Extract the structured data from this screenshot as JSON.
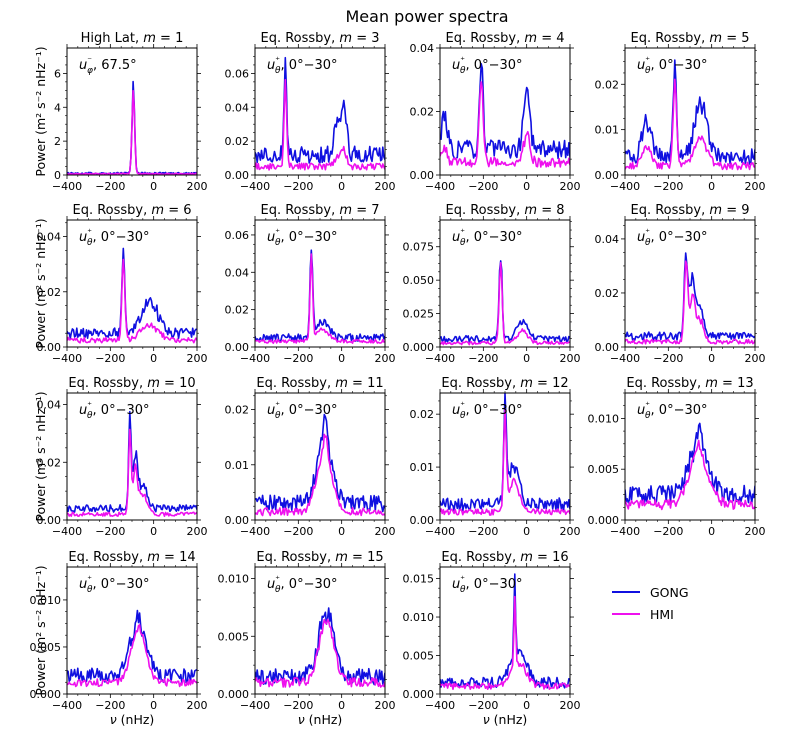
{
  "figure": {
    "title": "Mean power spectra",
    "xlabel": "ν (nHz)",
    "ylabel": "Power (m² s⁻² nHz⁻¹)",
    "x_ticks": [
      -400,
      -200,
      0,
      200
    ],
    "xlim": [
      -400,
      200
    ]
  },
  "legend": {
    "placement": "bottom-right",
    "entries": [
      {
        "name": "GONG",
        "color": "#1010e0"
      },
      {
        "name": "HMI",
        "color": "#ee10ee"
      }
    ]
  },
  "chart_data": [
    {
      "type": "line",
      "title": "High Lat, m = 1",
      "annotation": "u_φ⁻, 67.5°",
      "xlim": [
        -400,
        200
      ],
      "ylim": [
        0,
        7.5
      ],
      "yticks": [
        0,
        2,
        4,
        6
      ],
      "ytick_labels": [
        "0",
        "2",
        "4",
        "6"
      ],
      "peaks": [
        {
          "x": -94,
          "y": 5.1,
          "w": 6
        }
      ],
      "baseline": {
        "GONG": 0.1,
        "HMI": 0.07
      },
      "noise": {
        "GONG": 0.06,
        "HMI": 0.03
      },
      "hmi_scale": 1.0,
      "series": [
        {
          "name": "GONG",
          "values_ref": "generated"
        },
        {
          "name": "HMI",
          "values_ref": "generated"
        }
      ]
    },
    {
      "type": "line",
      "title": "Eq. Rossby, m = 3",
      "annotation": "u_θ⁺, 0°−30°",
      "xlim": [
        -400,
        200
      ],
      "ylim": [
        0,
        0.075
      ],
      "yticks": [
        0,
        0.02,
        0.04,
        0.06
      ],
      "ytick_labels": [
        "0.00",
        "0.02",
        "0.04",
        "0.06"
      ],
      "peaks": [
        {
          "x": -260,
          "y": 0.052,
          "w": 6
        },
        {
          "x": 10,
          "y": 0.03,
          "w": 12
        },
        {
          "x": -20,
          "y": 0.018,
          "w": 15
        }
      ],
      "baseline": {
        "GONG": 0.012,
        "HMI": 0.005
      },
      "noise": {
        "GONG": 0.005,
        "HMI": 0.002
      },
      "hmi_scale": 0.3
    },
    {
      "type": "line",
      "title": "Eq. Rossby, m = 4",
      "annotation": "u_θ⁺, 0°−30°",
      "xlim": [
        -400,
        200
      ],
      "ylim": [
        0,
        0.04
      ],
      "yticks": [
        0,
        0.02,
        0.04
      ],
      "ytick_labels": [
        "0.00",
        "0.02",
        "0.04"
      ],
      "peaks": [
        {
          "x": -210,
          "y": 0.027,
          "w": 9
        },
        {
          "x": 0,
          "y": 0.02,
          "w": 14
        },
        {
          "x": -380,
          "y": 0.012,
          "w": 12
        }
      ],
      "baseline": {
        "GONG": 0.008,
        "HMI": 0.004
      },
      "noise": {
        "GONG": 0.003,
        "HMI": 0.0015
      },
      "hmi_scale": 0.45
    },
    {
      "type": "line",
      "title": "Eq. Rossby, m = 5",
      "annotation": "u_θ⁺, 0°−30°",
      "xlim": [
        -400,
        200
      ],
      "ylim": [
        0,
        0.028
      ],
      "yticks": [
        0,
        0.01,
        0.02
      ],
      "ytick_labels": [
        "0.00",
        "0.01",
        "0.02"
      ],
      "peaks": [
        {
          "x": -170,
          "y": 0.019,
          "w": 8
        },
        {
          "x": -50,
          "y": 0.011,
          "w": 30
        },
        {
          "x": -300,
          "y": 0.008,
          "w": 20
        }
      ],
      "baseline": {
        "GONG": 0.004,
        "HMI": 0.002
      },
      "noise": {
        "GONG": 0.0018,
        "HMI": 0.0008
      },
      "hmi_scale": 0.55
    },
    {
      "type": "line",
      "title": "Eq. Rossby, m = 6",
      "annotation": "u_θ⁺, 0°−30°",
      "xlim": [
        -400,
        200
      ],
      "ylim": [
        0,
        0.046
      ],
      "yticks": [
        0,
        0.02,
        0.04
      ],
      "ytick_labels": [
        "0.00",
        "0.02",
        "0.04"
      ],
      "peaks": [
        {
          "x": -140,
          "y": 0.03,
          "w": 7
        },
        {
          "x": -20,
          "y": 0.011,
          "w": 40
        }
      ],
      "baseline": {
        "GONG": 0.005,
        "HMI": 0.0025
      },
      "noise": {
        "GONG": 0.002,
        "HMI": 0.001
      },
      "hmi_scale": 0.5
    },
    {
      "type": "line",
      "title": "Eq. Rossby, m = 7",
      "annotation": "u_θ⁺, 0°−30°",
      "xlim": [
        -400,
        200
      ],
      "ylim": [
        0,
        0.068
      ],
      "yticks": [
        0,
        0.02,
        0.04,
        0.06
      ],
      "ytick_labels": [
        "0.00",
        "0.02",
        "0.04",
        "0.06"
      ],
      "peaks": [
        {
          "x": -140,
          "y": 0.046,
          "w": 6
        },
        {
          "x": -90,
          "y": 0.008,
          "w": 30
        }
      ],
      "baseline": {
        "GONG": 0.005,
        "HMI": 0.003
      },
      "noise": {
        "GONG": 0.002,
        "HMI": 0.001
      },
      "hmi_scale": 0.8
    },
    {
      "type": "line",
      "title": "Eq. Rossby, m = 8",
      "annotation": "u_θ⁺, 0°−30°",
      "xlim": [
        -400,
        200
      ],
      "ylim": [
        0,
        0.095
      ],
      "yticks": [
        0,
        0.025,
        0.05,
        0.075
      ],
      "ytick_labels": [
        "0.000",
        "0.025",
        "0.050",
        "0.075"
      ],
      "peaks": [
        {
          "x": -120,
          "y": 0.063,
          "w": 7
        },
        {
          "x": -20,
          "y": 0.012,
          "w": 25
        }
      ],
      "baseline": {
        "GONG": 0.006,
        "HMI": 0.003
      },
      "noise": {
        "GONG": 0.0025,
        "HMI": 0.0012
      },
      "hmi_scale": 0.75
    },
    {
      "type": "line",
      "title": "Eq. Rossby, m = 9",
      "annotation": "u_θ⁺, 0°−30°",
      "xlim": [
        -400,
        200
      ],
      "ylim": [
        0,
        0.047
      ],
      "yticks": [
        0,
        0.02,
        0.04
      ],
      "ytick_labels": [
        "0.00",
        "0.02",
        "0.04"
      ],
      "peaks": [
        {
          "x": -118,
          "y": 0.031,
          "w": 8
        },
        {
          "x": -90,
          "y": 0.02,
          "w": 10
        },
        {
          "x": -60,
          "y": 0.012,
          "w": 20
        }
      ],
      "baseline": {
        "GONG": 0.004,
        "HMI": 0.002
      },
      "noise": {
        "GONG": 0.0015,
        "HMI": 0.0008
      },
      "hmi_scale": 0.75
    },
    {
      "type": "line",
      "title": "Eq. Rossby, m = 10",
      "annotation": "u_θ⁺, 0°−30°",
      "xlim": [
        -400,
        200
      ],
      "ylim": [
        0,
        0.044
      ],
      "yticks": [
        0,
        0.02,
        0.04
      ],
      "ytick_labels": [
        "0.00",
        "0.02",
        "0.04"
      ],
      "peaks": [
        {
          "x": -110,
          "y": 0.03,
          "w": 6
        },
        {
          "x": -85,
          "y": 0.018,
          "w": 10
        },
        {
          "x": -50,
          "y": 0.008,
          "w": 20
        }
      ],
      "baseline": {
        "GONG": 0.004,
        "HMI": 0.002
      },
      "noise": {
        "GONG": 0.0013,
        "HMI": 0.0007
      },
      "hmi_scale": 0.85
    },
    {
      "type": "line",
      "title": "Eq. Rossby, m = 11",
      "annotation": "u_θ⁺, 0°−30°",
      "xlim": [
        -400,
        200
      ],
      "ylim": [
        0,
        0.023
      ],
      "yticks": [
        0,
        0.01,
        0.02
      ],
      "ytick_labels": [
        "0.00",
        "0.01",
        "0.02"
      ],
      "peaks": [
        {
          "x": -80,
          "y": 0.011,
          "w": 35
        },
        {
          "x": -75,
          "y": 0.005,
          "w": 8
        }
      ],
      "baseline": {
        "GONG": 0.003,
        "HMI": 0.0015
      },
      "noise": {
        "GONG": 0.0015,
        "HMI": 0.0007
      },
      "hmi_scale": 0.7
    },
    {
      "type": "line",
      "title": "Eq. Rossby, m = 12",
      "annotation": "u_θ⁺, 0°−30°",
      "xlim": [
        -400,
        200
      ],
      "ylim": [
        0,
        0.024
      ],
      "yticks": [
        0,
        0.01,
        0.02
      ],
      "ytick_labels": [
        "0.00",
        "0.01",
        "0.02"
      ],
      "peaks": [
        {
          "x": -100,
          "y": 0.018,
          "w": 6
        },
        {
          "x": -60,
          "y": 0.007,
          "w": 25
        }
      ],
      "baseline": {
        "GONG": 0.003,
        "HMI": 0.0015
      },
      "noise": {
        "GONG": 0.0012,
        "HMI": 0.0006
      },
      "hmi_scale": 0.8
    },
    {
      "type": "line",
      "title": "Eq. Rossby, m = 13",
      "annotation": "u_θ⁺, 0°−30°",
      "xlim": [
        -400,
        200
      ],
      "ylim": [
        0,
        0.0125
      ],
      "yticks": [
        0,
        0.005,
        0.01
      ],
      "ytick_labels": [
        "0.000",
        "0.005",
        "0.010"
      ],
      "peaks": [
        {
          "x": -60,
          "y": 0.005,
          "w": 45
        },
        {
          "x": -60,
          "y": 0.002,
          "w": 8
        }
      ],
      "baseline": {
        "GONG": 0.0025,
        "HMI": 0.0015
      },
      "noise": {
        "GONG": 0.0009,
        "HMI": 0.0005
      },
      "hmi_scale": 0.75
    },
    {
      "type": "line",
      "title": "Eq. Rossby, m = 14",
      "annotation": "u_θ⁺, 0°−30°",
      "xlim": [
        -400,
        200
      ],
      "ylim": [
        0,
        0.0135
      ],
      "yticks": [
        0,
        0.005,
        0.01
      ],
      "ytick_labels": [
        "0.000",
        "0.005",
        "0.010"
      ],
      "peaks": [
        {
          "x": -70,
          "y": 0.006,
          "w": 35
        }
      ],
      "baseline": {
        "GONG": 0.002,
        "HMI": 0.0012
      },
      "noise": {
        "GONG": 0.0008,
        "HMI": 0.0004
      },
      "hmi_scale": 0.8
    },
    {
      "type": "line",
      "title": "Eq. Rossby, m = 15",
      "annotation": "u_θ⁺, 0°−30°",
      "xlim": [
        -400,
        200
      ],
      "ylim": [
        0,
        0.011
      ],
      "yticks": [
        0,
        0.005,
        0.01
      ],
      "ytick_labels": [
        "0.000",
        "0.005",
        "0.010"
      ],
      "peaks": [
        {
          "x": -70,
          "y": 0.0055,
          "w": 35
        }
      ],
      "baseline": {
        "GONG": 0.0015,
        "HMI": 0.001
      },
      "noise": {
        "GONG": 0.0007,
        "HMI": 0.0004
      },
      "hmi_scale": 0.85
    },
    {
      "type": "line",
      "title": "Eq. Rossby, m = 16",
      "annotation": "u_θ⁺, 0°−30°",
      "xlim": [
        -400,
        200
      ],
      "ylim": [
        0,
        0.0165
      ],
      "yticks": [
        0,
        0.005,
        0.01,
        0.015
      ],
      "ytick_labels": [
        "0.000",
        "0.005",
        "0.010",
        "0.015"
      ],
      "peaks": [
        {
          "x": -55,
          "y": 0.009,
          "w": 4
        },
        {
          "x": -40,
          "y": 0.004,
          "w": 35
        }
      ],
      "baseline": {
        "GONG": 0.0015,
        "HMI": 0.001
      },
      "noise": {
        "GONG": 0.0007,
        "HMI": 0.0004
      },
      "hmi_scale": 0.8
    }
  ]
}
